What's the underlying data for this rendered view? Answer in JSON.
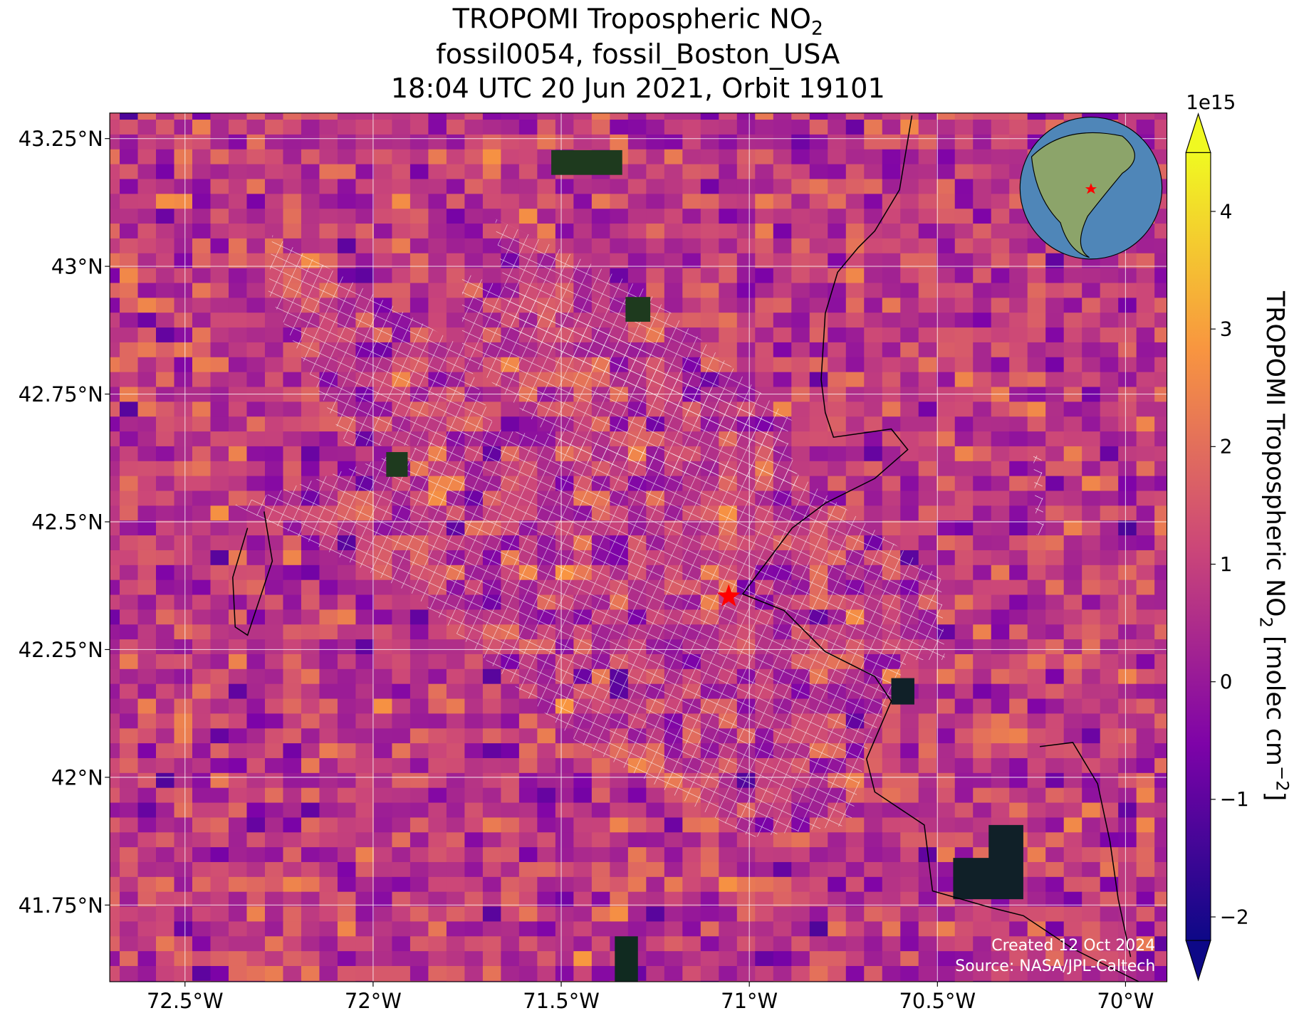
{
  "title": {
    "line1": "TROPOMI Tropospheric NO",
    "line1_sub": "2",
    "line2": "fossil0054, fossil_Boston_USA",
    "line3": "18:04 UTC 20 Jun 2021, Orbit 19101"
  },
  "map": {
    "xlim": [
      -72.7,
      -69.89
    ],
    "ylim": [
      41.6,
      43.3
    ],
    "xticks": [
      {
        "value": -72.5,
        "label": "72.5°W"
      },
      {
        "value": -72,
        "label": "72°W"
      },
      {
        "value": -71.5,
        "label": "71.5°W"
      },
      {
        "value": -71,
        "label": "71°W"
      },
      {
        "value": -70.5,
        "label": "70.5°W"
      },
      {
        "value": -70,
        "label": "70°W"
      }
    ],
    "yticks": [
      {
        "value": 41.75,
        "label": "41.75°N"
      },
      {
        "value": 42,
        "label": "42°N"
      },
      {
        "value": 42.25,
        "label": "42.25°N"
      },
      {
        "value": 42.5,
        "label": "42.5°N"
      },
      {
        "value": 42.75,
        "label": "42.75°N"
      },
      {
        "value": 43,
        "label": "43°N"
      },
      {
        "value": 43.25,
        "label": "43.25°N"
      }
    ],
    "grid": true
  },
  "colorbar": {
    "offset": "1e15",
    "clim": [
      -2.2,
      4.5
    ],
    "ticks": [
      {
        "value": -2,
        "label": "−2"
      },
      {
        "value": -1,
        "label": "−1"
      },
      0,
      1,
      2,
      3,
      4
    ],
    "label": "TROPOMI Tropospheric NO",
    "label_sub": "2",
    "label_mid": " [molec cm",
    "label_sup": "−2",
    "label_end": "]"
  },
  "footer": {
    "created": "Created 12 Oct 2024",
    "source": "Source: NASA/JPL-Caltech"
  }
}
